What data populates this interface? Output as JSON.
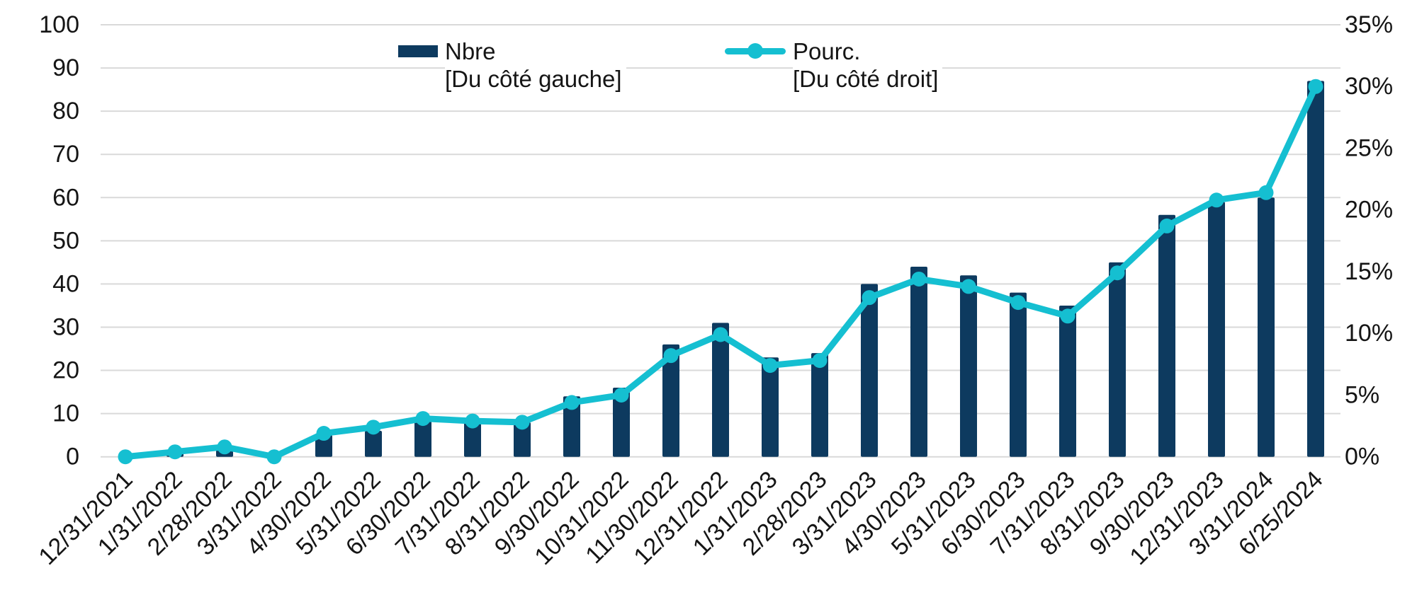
{
  "chart_data": {
    "type": "combo-bar-line",
    "title": "",
    "xlabel": "",
    "ylabel": "",
    "grid": true,
    "legend_position": "top",
    "categories": [
      "12/31/2021",
      "1/31/2022",
      "2/28/2022",
      "3/31/2022",
      "4/30/2022",
      "5/31/2022",
      "6/30/2022",
      "7/31/2022",
      "8/31/2022",
      "9/30/2022",
      "10/31/2022",
      "11/30/2022",
      "12/31/2022",
      "1/31/2023",
      "2/28/2023",
      "3/31/2023",
      "4/30/2023",
      "5/31/2023",
      "6/30/2023",
      "7/31/2023",
      "8/31/2023",
      "9/30/2023",
      "12/31/2023",
      "3/31/2024",
      "6/25/2024"
    ],
    "series": [
      {
        "name": "Nbre",
        "legend_label": "Nbre",
        "legend_sublabel": "[Du côté gauche]",
        "type": "bar",
        "axis": "left",
        "color": "#0d3a5f",
        "values": [
          0,
          1,
          2,
          0,
          5,
          6,
          9,
          8,
          8,
          14,
          16,
          26,
          31,
          23,
          24,
          40,
          44,
          42,
          38,
          35,
          45,
          56,
          59,
          60,
          87
        ]
      },
      {
        "name": "Pourc.",
        "legend_label": "Pourc.",
        "legend_sublabel": "[Du côté droit]",
        "type": "line",
        "axis": "right",
        "color": "#15bfd1",
        "values": [
          0,
          0.4,
          0.8,
          0,
          1.9,
          2.4,
          3.1,
          2.9,
          2.8,
          4.4,
          5,
          8.2,
          9.9,
          7.4,
          7.8,
          12.9,
          14.4,
          13.8,
          12.5,
          11.4,
          14.9,
          18.7,
          20.8,
          21.4,
          30
        ]
      }
    ],
    "left_axis": {
      "min": 0,
      "max": 100,
      "step": 10,
      "tick_labels": [
        "0",
        "10",
        "20",
        "30",
        "40",
        "50",
        "60",
        "70",
        "80",
        "90",
        "100"
      ]
    },
    "right_axis": {
      "min": 0,
      "max": 35,
      "step": 5,
      "unit": "%",
      "tick_labels": [
        "0%",
        "5%",
        "10%",
        "15%",
        "20%",
        "25%",
        "30%",
        "35%"
      ]
    }
  },
  "colors": {
    "bar": "#0d3a5f",
    "line": "#15bfd1",
    "grid": "#d9d9d9",
    "text": "#151515",
    "background": "#ffffff"
  }
}
